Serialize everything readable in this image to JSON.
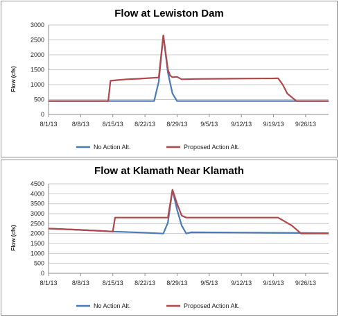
{
  "colors": {
    "no_action": "#4a7ab8",
    "proposed": "#b0474a",
    "grid": "#c9c9c9",
    "axis": "#8c8c8c"
  },
  "chart_data": [
    {
      "type": "line",
      "title": "Flow at Lewiston Dam",
      "ylabel": "Flow (cfs)",
      "xlabel": "",
      "x_tick_labels": [
        "8/1/13",
        "8/8/13",
        "8/15/13",
        "8/22/13",
        "8/29/13",
        "9/5/13",
        "9/12/13",
        "9/19/13",
        "9/26/13"
      ],
      "x_tick_days": [
        0,
        7,
        14,
        21,
        28,
        35,
        42,
        49,
        56
      ],
      "xlim_days": [
        0,
        61
      ],
      "ylim": [
        0,
        3000
      ],
      "yticks": [
        0,
        500,
        1000,
        1500,
        2000,
        2500,
        3000
      ],
      "grid": true,
      "legend_position": "bottom",
      "series": [
        {
          "name": "No Action Alt.",
          "color_key": "no_action",
          "x": [
            0,
            13,
            17,
            23,
            24,
            25,
            26,
            27,
            28,
            61
          ],
          "y": [
            450,
            450,
            450,
            450,
            1100,
            2650,
            1400,
            700,
            450,
            450
          ]
        },
        {
          "name": "Proposed Action Alt.",
          "color_key": "proposed",
          "x": [
            0,
            13,
            13.5,
            15,
            17,
            20,
            24,
            25,
            26,
            26.5,
            27,
            28,
            29,
            32,
            40,
            49,
            50,
            51,
            52,
            54,
            61
          ],
          "y": [
            450,
            450,
            1130,
            1150,
            1180,
            1200,
            1240,
            2650,
            1500,
            1300,
            1250,
            1260,
            1180,
            1190,
            1200,
            1210,
            1215,
            1000,
            700,
            450,
            450
          ]
        }
      ]
    },
    {
      "type": "line",
      "title": "Flow at Klamath Near Klamath",
      "ylabel": "Flow (cfs)",
      "xlabel": "",
      "x_tick_labels": [
        "8/1/13",
        "8/8/13",
        "8/15/13",
        "8/22/13",
        "8/29/13",
        "9/5/13",
        "9/12/13",
        "9/19/13",
        "9/26/13"
      ],
      "x_tick_days": [
        0,
        7,
        14,
        21,
        28,
        35,
        42,
        49,
        56
      ],
      "xlim_days": [
        0,
        61
      ],
      "ylim": [
        0,
        4500
      ],
      "yticks": [
        0,
        500,
        1000,
        1500,
        2000,
        2500,
        3000,
        3500,
        4000,
        4500
      ],
      "grid": true,
      "legend_position": "bottom",
      "series": [
        {
          "name": "No Action Alt.",
          "color_key": "no_action",
          "x": [
            0,
            5,
            10,
            14,
            20,
            25,
            26,
            27,
            28,
            29,
            30,
            31,
            40,
            61
          ],
          "y": [
            2250,
            2200,
            2150,
            2100,
            2050,
            2000,
            2550,
            4200,
            3200,
            2400,
            2000,
            2060,
            2050,
            2020
          ]
        },
        {
          "name": "Proposed Action Alt.",
          "color_key": "proposed",
          "x": [
            0,
            5,
            10,
            14,
            14.5,
            20,
            26,
            27,
            28,
            29,
            30,
            40,
            50,
            53,
            55,
            61
          ],
          "y": [
            2250,
            2200,
            2150,
            2100,
            2800,
            2800,
            2800,
            4200,
            3500,
            2900,
            2800,
            2800,
            2800,
            2400,
            2000,
            2000
          ]
        }
      ]
    }
  ]
}
